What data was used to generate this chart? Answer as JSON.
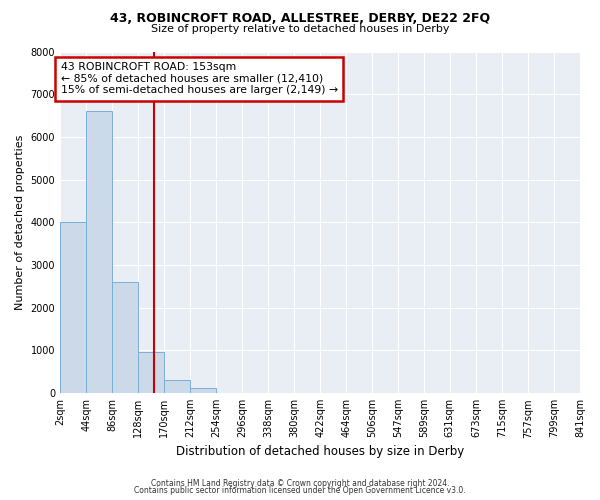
{
  "title": "43, ROBINCROFT ROAD, ALLESTREE, DERBY, DE22 2FQ",
  "subtitle": "Size of property relative to detached houses in Derby",
  "xlabel": "Distribution of detached houses by size in Derby",
  "ylabel": "Number of detached properties",
  "bar_color": "#ccd9e8",
  "bar_edge_color": "#7bafd4",
  "background_color": "#e8eef4",
  "bins": [
    2,
    44,
    86,
    128,
    170,
    212,
    254,
    296,
    338,
    380,
    422,
    464,
    506,
    547,
    589,
    631,
    673,
    715,
    757,
    799,
    841
  ],
  "bin_labels": [
    "2sqm",
    "44sqm",
    "86sqm",
    "128sqm",
    "170sqm",
    "212sqm",
    "254sqm",
    "296sqm",
    "338sqm",
    "380sqm",
    "422sqm",
    "464sqm",
    "506sqm",
    "547sqm",
    "589sqm",
    "631sqm",
    "673sqm",
    "715sqm",
    "757sqm",
    "799sqm",
    "841sqm"
  ],
  "values": [
    4000,
    6600,
    2600,
    975,
    320,
    120,
    0,
    0,
    0,
    0,
    0,
    0,
    0,
    0,
    0,
    0,
    0,
    0,
    0,
    0
  ],
  "property_value": 153,
  "annotation_line1": "43 ROBINCROFT ROAD: 153sqm",
  "annotation_line2": "← 85% of detached houses are smaller (12,410)",
  "annotation_line3": "15% of semi-detached houses are larger (2,149) →",
  "annotation_box_color": "#ffffff",
  "annotation_box_edge_color": "#cc0000",
  "ylim": [
    0,
    8000
  ],
  "yticks": [
    0,
    1000,
    2000,
    3000,
    4000,
    5000,
    6000,
    7000,
    8000
  ],
  "footer_line1": "Contains HM Land Registry data © Crown copyright and database right 2024.",
  "footer_line2": "Contains public sector information licensed under the Open Government Licence v3.0."
}
